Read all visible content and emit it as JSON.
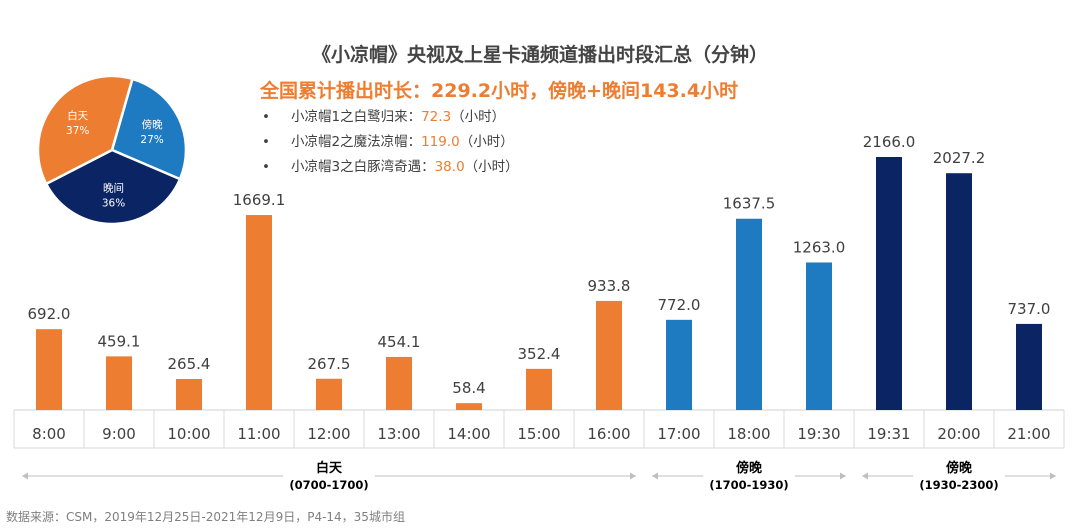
{
  "title": "《小凉帽》央视及上星卡通频道播出时段汇总（分钟）",
  "subtitle": "全国累计播出时长：229.2小时，傍晚+晚间143.4小时",
  "notes": [
    {
      "name": "小凉帽1之白鹭归来：",
      "value": "72.3",
      "unit": "（小时）"
    },
    {
      "name": "小凉帽2之魔法凉帽：",
      "value": "119.0",
      "unit": "（小时）"
    },
    {
      "name": "小凉帽3之白豚湾奇遇：",
      "value": "38.0",
      "unit": "（小时）"
    }
  ],
  "source": "数据来源：CSM，2019年12月25日-2021年12月9日，P4-14，35城市组",
  "colors": {
    "daytime": "#ed7d31",
    "evening": "#1f7bc1",
    "night": "#0b2463"
  },
  "chart_data": [
    {
      "type": "bar",
      "categories": [
        "8:00",
        "9:00",
        "10:00",
        "11:00",
        "12:00",
        "13:00",
        "14:00",
        "15:00",
        "16:00",
        "17:00",
        "18:00",
        "19:30",
        "19:31",
        "20:00",
        "21:00"
      ],
      "values": [
        692.0,
        459.1,
        265.4,
        1669.1,
        267.5,
        454.1,
        58.4,
        352.4,
        933.8,
        772.0,
        1637.5,
        1263.0,
        2166.0,
        2027.2,
        737.0
      ],
      "value_labels": [
        "692.0",
        "459.1",
        "265.4",
        "1669.1",
        "267.5",
        "454.1",
        "58.4",
        "352.4",
        "933.8",
        "772.0",
        "1637.5",
        "1263.0",
        "2166.0",
        "2027.2",
        "737.0"
      ],
      "groups": [
        {
          "label": "白天",
          "range": "(0700-1700)",
          "color": "#ed7d31",
          "from": 0,
          "to": 8
        },
        {
          "label": "傍晚",
          "range": "(1700-1930)",
          "color": "#1f7bc1",
          "from": 9,
          "to": 11
        },
        {
          "label": "傍晚",
          "range": "(1930-2300)",
          "color": "#0b2463",
          "from": 12,
          "to": 14
        }
      ],
      "ylim": [
        0,
        2166
      ]
    },
    {
      "type": "pie",
      "slices": [
        {
          "label": "白天",
          "percent": "37%",
          "value": 37,
          "color": "#ed7d31"
        },
        {
          "label": "傍晚",
          "percent": "27%",
          "value": 27,
          "color": "#1f7bc1"
        },
        {
          "label": "晚间",
          "percent": "36%",
          "value": 36,
          "color": "#0b2463"
        }
      ]
    }
  ]
}
